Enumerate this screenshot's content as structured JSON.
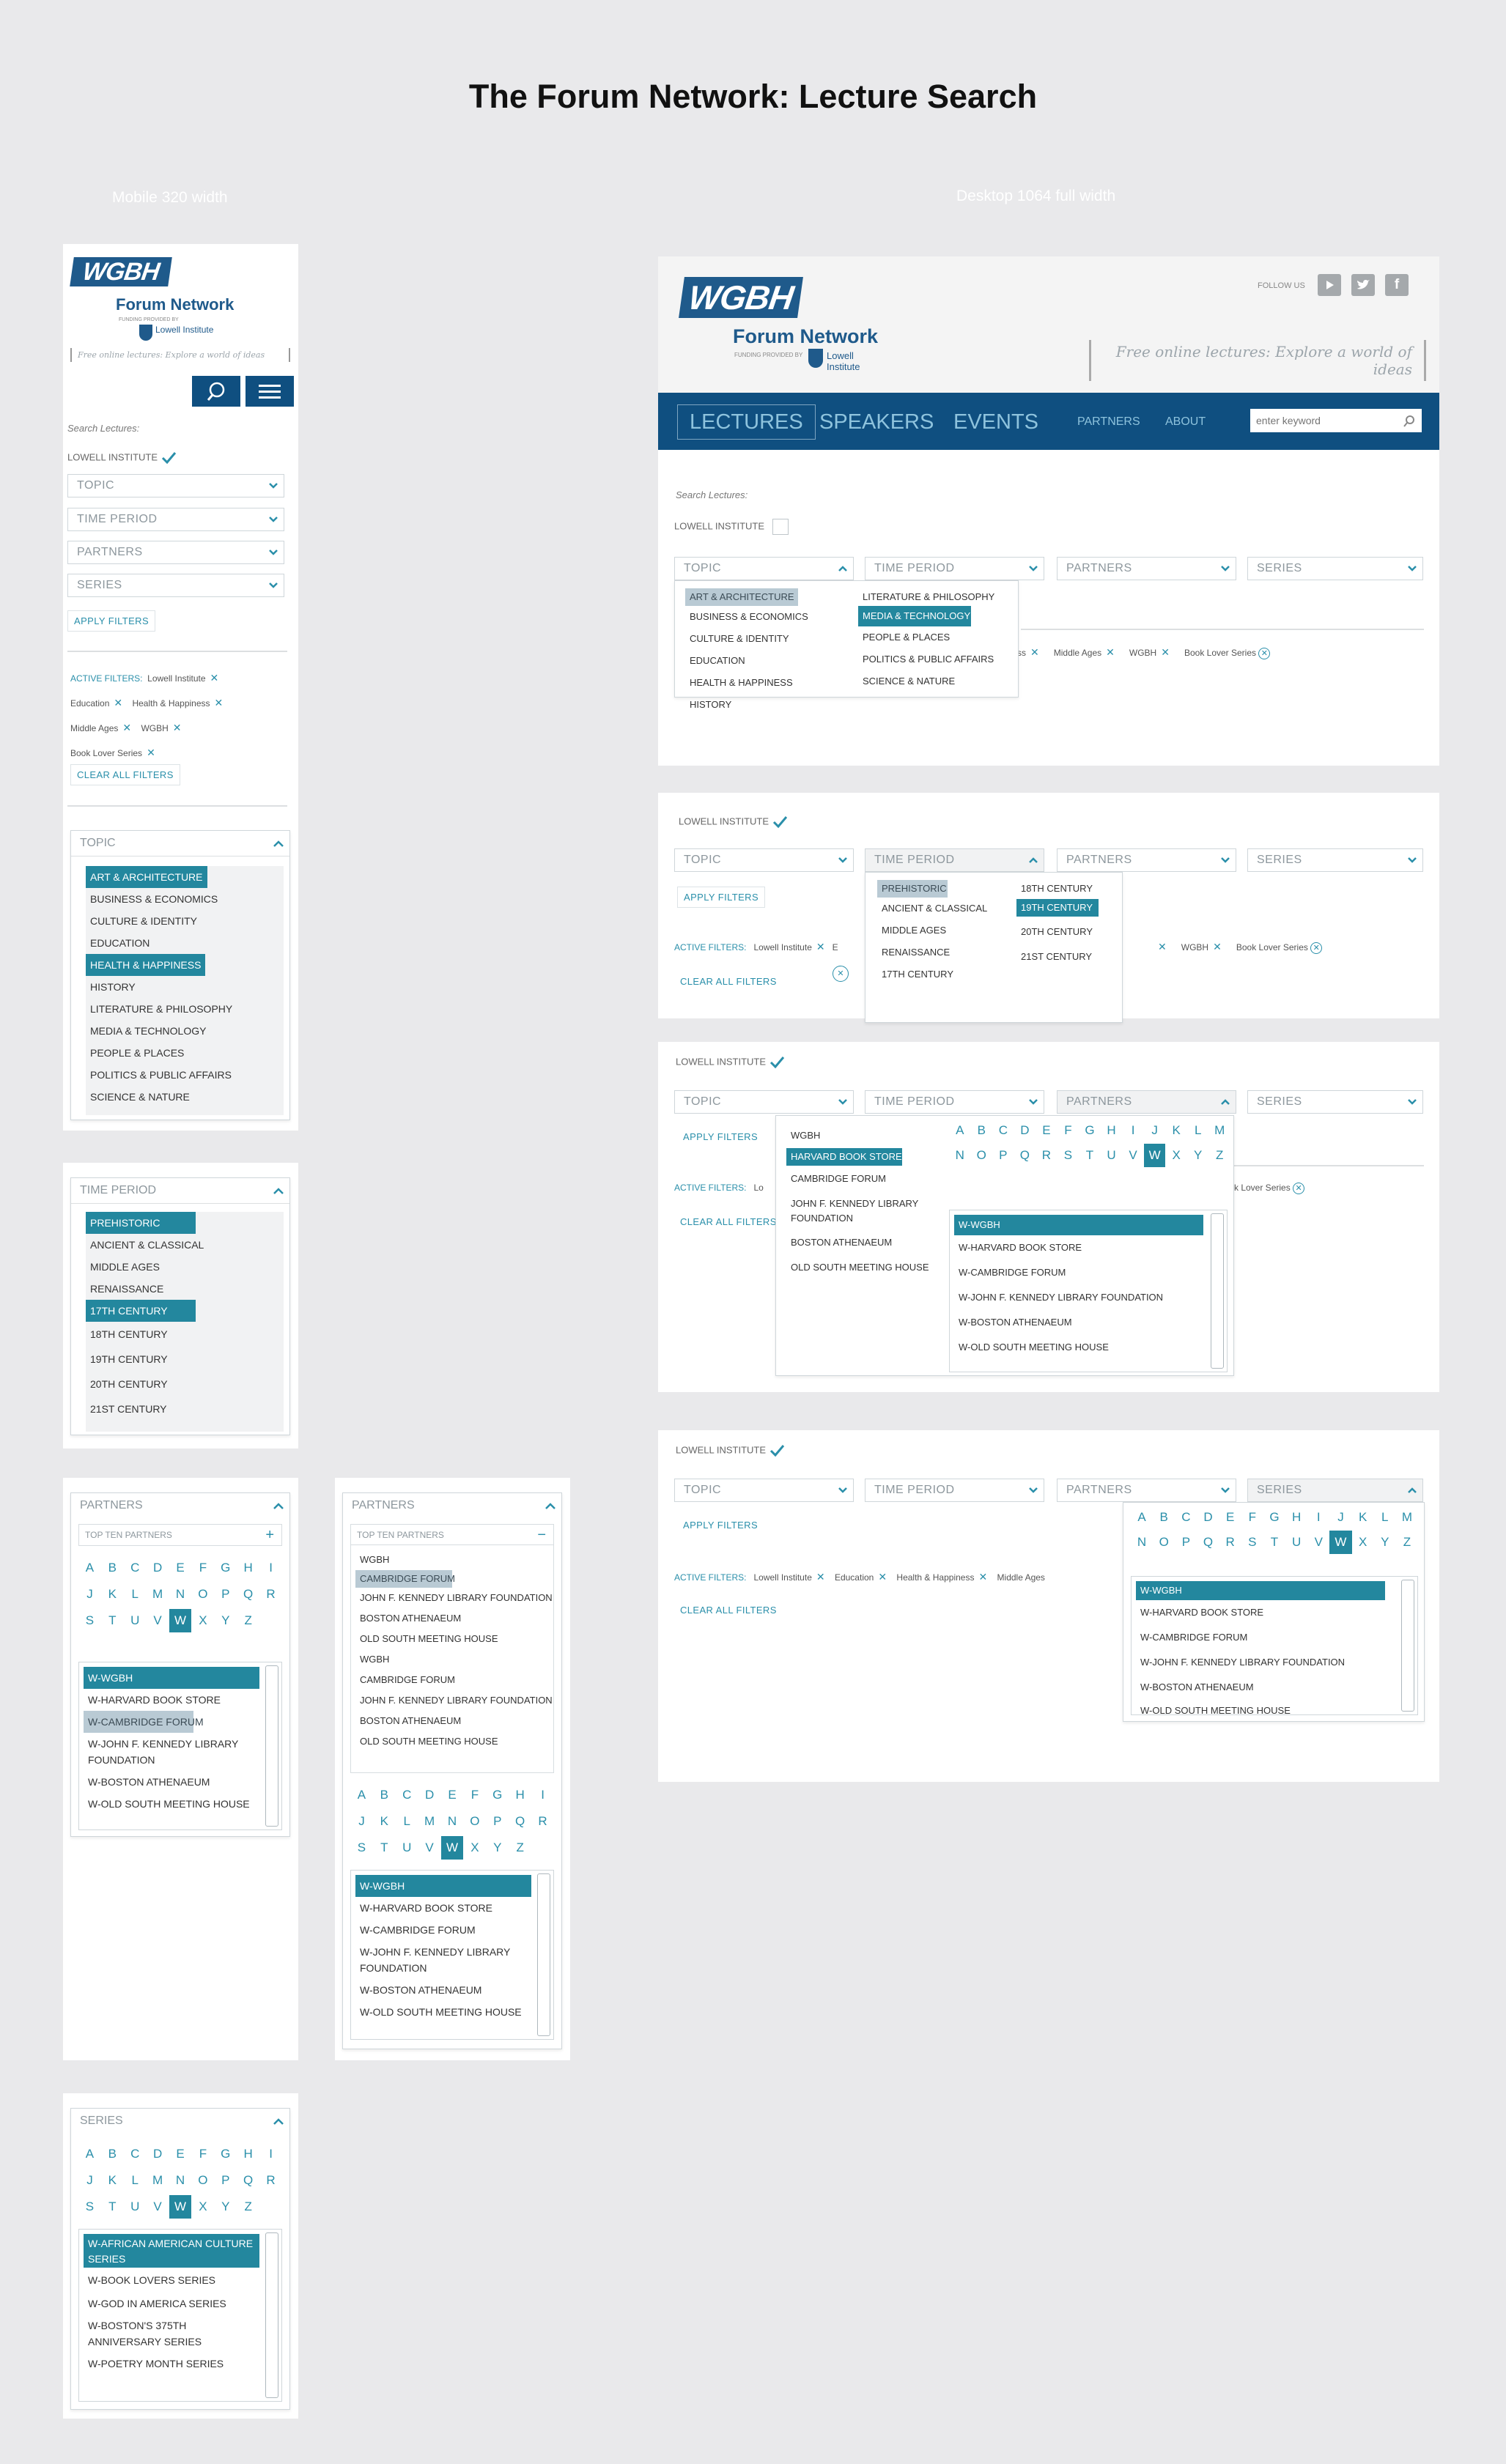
{
  "page_title": "The Forum Network: Lecture Search",
  "labels": {
    "mobile": "Mobile 320 width",
    "desktop": "Desktop 1064 full width"
  },
  "brand": {
    "wgbh": "WGBH",
    "forum": "Forum Network",
    "funding": "FUNDING PROVIDED BY",
    "lowell": "Lowell Institute",
    "tagline": "Free online lectures: Explore a world of ideas",
    "follow": "FOLLOW US"
  },
  "nav": {
    "items": [
      "LECTURES",
      "SPEAKERS",
      "EVENTS"
    ],
    "small": [
      "PARTNERS",
      "ABOUT"
    ],
    "search_placeholder": "enter keyword"
  },
  "search_label": "Search Lectures:",
  "lowell_label": "LOWELL INSTITUTE",
  "filters": {
    "topic": "TOPIC",
    "time": "TIME PERIOD",
    "partners": "PARTNERS",
    "series": "SERIES"
  },
  "apply": "APPLY FILTERS",
  "active_label": "ACTIVE FILTERS:",
  "clear": "CLEAR ALL FILTERS",
  "active_filters": [
    "Lowell Institute",
    "Education",
    "Health & Happiness",
    "Middle Ages",
    "WGBH",
    "Book Lover Series"
  ],
  "active_partial": {
    "ss": "ss",
    "e": "E",
    "lo": "Lo",
    "k_lover": "k Lover Series"
  },
  "topics": [
    "ART & ARCHITECTURE",
    "BUSINESS & ECONOMICS",
    "CULTURE & IDENTITY",
    "EDUCATION",
    "HEALTH & HAPPINESS",
    "HISTORY",
    "LITERATURE & PHILOSOPHY",
    "MEDIA & TECHNOLOGY",
    "PEOPLE & PLACES",
    "POLITICS & PUBLIC AFFAIRS",
    "SCIENCE & NATURE"
  ],
  "periods": [
    "PREHISTORIC",
    "ANCIENT & CLASSICAL",
    "MIDDLE AGES",
    "RENAISSANCE",
    "17TH CENTURY",
    "18TH CENTURY",
    "19TH CENTURY",
    "20TH CENTURY",
    "21ST CENTURY"
  ],
  "top_ten_label": "TOP TEN PARTNERS",
  "partners_top": [
    "WGBH",
    "CAMBRIDGE FORUM",
    "JOHN F. KENNEDY LIBRARY FOUNDATION",
    "BOSTON ATHENAEUM",
    "OLD SOUTH MEETING HOUSE",
    "WGBH",
    "CAMBRIDGE FORUM",
    "JOHN F. KENNEDY LIBRARY FOUNDATION",
    "BOSTON ATHENAEUM",
    "OLD SOUTH MEETING HOUSE"
  ],
  "partners_dd": [
    "WGBH",
    "HARVARD BOOK STORE",
    "CAMBRIDGE FORUM",
    "JOHN F. KENNEDY LIBRARY FOUNDATION",
    "BOSTON ATHENAEUM",
    "OLD SOUTH MEETING HOUSE"
  ],
  "w_partners": [
    "W-WGBH",
    "W-HARVARD BOOK STORE",
    "W-CAMBRIDGE FORUM",
    "W-JOHN F. KENNEDY LIBRARY FOUNDATION",
    "W-BOSTON ATHENAEUM",
    "W-OLD SOUTH MEETING HOUSE"
  ],
  "w_series": [
    "W-AFRICAN AMERICAN CULTURE SERIES",
    "W-BOOK LOVERS SERIES",
    "W-GOD IN AMERICA SERIES",
    "W-BOSTON'S 375TH ANNIVERSARY SERIES",
    "W-POETRY MONTH SERIES"
  ],
  "alphabet": [
    "A",
    "B",
    "C",
    "D",
    "E",
    "F",
    "G",
    "H",
    "I",
    "J",
    "K",
    "L",
    "M",
    "N",
    "O",
    "P",
    "Q",
    "R",
    "S",
    "T",
    "U",
    "V",
    "W",
    "X",
    "Y",
    "Z"
  ],
  "colors": {
    "teal": "#23879e",
    "navy": "#0f4f80",
    "link": "#2a8faa"
  }
}
